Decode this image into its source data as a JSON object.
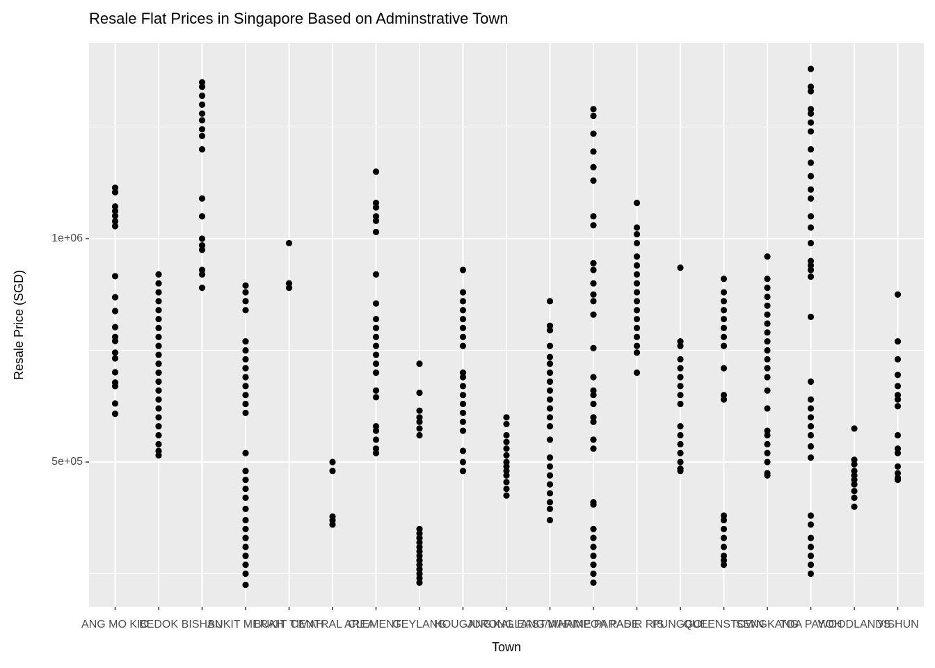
{
  "chart_data": {
    "type": "strip",
    "title": "Resale Flat Prices in Singapore Based on Adminstrative Town",
    "x_label": "Town",
    "y_label": "Resale Price (SGD)",
    "categories": [
      "ANG MO KIO",
      "BEDOK",
      "BISHAN",
      "BUKIT MERAH",
      "BUKIT TIMAH",
      "CENTRAL AREA",
      "CLEMENTI",
      "GEYLANG",
      "HOUGANG",
      "JURONG EAST",
      "KALLANG/WHAMPOA",
      "MARINE PARADE",
      "PASIR RIS",
      "PUNGGOL",
      "QUEENSTOWN",
      "SENGKANG",
      "TOA PAYOH",
      "WOODLANDS",
      "YISHUN"
    ],
    "values": [
      [
        1114000,
        1104000,
        1072000,
        1062000,
        1051000,
        1039000,
        1028000,
        916000,
        869000,
        838000,
        802000,
        780000,
        771000,
        745000,
        732000,
        701000,
        678000,
        670000,
        631000,
        608000
      ],
      [
        920000,
        900000,
        880000,
        860000,
        840000,
        820000,
        800000,
        780000,
        760000,
        740000,
        720000,
        700000,
        680000,
        660000,
        640000,
        620000,
        600000,
        580000,
        560000,
        540000,
        525000,
        515000
      ],
      [
        1350000,
        1340000,
        1320000,
        1300000,
        1280000,
        1265000,
        1245000,
        1230000,
        1200000,
        1090000,
        1050000,
        1000000,
        985000,
        975000,
        930000,
        920000,
        890000
      ],
      [
        895000,
        880000,
        860000,
        840000,
        770000,
        750000,
        730000,
        710000,
        690000,
        670000,
        650000,
        630000,
        610000,
        520000,
        480000,
        460000,
        440000,
        420000,
        395000,
        370000,
        350000,
        330000,
        310000,
        290000,
        270000,
        250000,
        225000
      ],
      [
        990000,
        900000,
        890000
      ],
      [
        500000,
        480000,
        378000,
        370000,
        360000
      ],
      [
        1150000,
        1080000,
        1070000,
        1050000,
        1040000,
        1015000,
        920000,
        855000,
        820000,
        800000,
        780000,
        760000,
        740000,
        720000,
        700000,
        660000,
        645000,
        580000,
        570000,
        550000,
        530000,
        520000
      ],
      [
        720000,
        655000,
        615000,
        600000,
        590000,
        575000,
        560000,
        350000,
        340000,
        330000,
        320000,
        310000,
        300000,
        290000,
        280000,
        270000,
        260000,
        250000,
        240000,
        230000
      ],
      [
        930000,
        880000,
        860000,
        840000,
        820000,
        800000,
        780000,
        760000,
        700000,
        690000,
        670000,
        650000,
        630000,
        610000,
        590000,
        570000,
        525000,
        500000,
        480000
      ],
      [
        600000,
        585000,
        560000,
        545000,
        530000,
        515000,
        500000,
        490000,
        480000,
        470000,
        455000,
        440000,
        425000
      ],
      [
        860000,
        805000,
        795000,
        760000,
        735000,
        720000,
        700000,
        680000,
        660000,
        640000,
        620000,
        600000,
        580000,
        550000,
        510000,
        490000,
        470000,
        450000,
        430000,
        410000,
        395000,
        370000
      ],
      [
        1290000,
        1275000,
        1235000,
        1195000,
        1160000,
        1130000,
        1050000,
        1030000,
        945000,
        930000,
        900000,
        875000,
        860000,
        830000,
        755000,
        690000,
        660000,
        650000,
        630000,
        600000,
        590000,
        550000,
        530000,
        410000,
        405000,
        350000,
        330000,
        310000,
        290000,
        270000,
        250000,
        230000
      ],
      [
        1080000,
        1025000,
        1010000,
        990000,
        960000,
        940000,
        920000,
        900000,
        880000,
        860000,
        840000,
        820000,
        800000,
        780000,
        760000,
        745000,
        700000
      ],
      [
        935000,
        770000,
        760000,
        730000,
        710000,
        690000,
        670000,
        650000,
        630000,
        580000,
        560000,
        540000,
        520000,
        500000,
        485000,
        480000
      ],
      [
        910000,
        880000,
        860000,
        840000,
        820000,
        800000,
        780000,
        760000,
        710000,
        650000,
        640000,
        380000,
        370000,
        350000,
        330000,
        310000,
        290000,
        280000,
        270000
      ],
      [
        960000,
        910000,
        890000,
        870000,
        850000,
        830000,
        810000,
        790000,
        770000,
        750000,
        730000,
        710000,
        690000,
        660000,
        620000,
        570000,
        560000,
        540000,
        520000,
        500000,
        475000,
        470000
      ],
      [
        1380000,
        1340000,
        1330000,
        1290000,
        1280000,
        1260000,
        1240000,
        1200000,
        1170000,
        1140000,
        1110000,
        1090000,
        1050000,
        1025000,
        990000,
        950000,
        940000,
        930000,
        915000,
        825000,
        680000,
        640000,
        620000,
        600000,
        580000,
        560000,
        535000,
        510000,
        380000,
        360000,
        330000,
        310000,
        290000,
        270000,
        250000
      ],
      [
        575000,
        505000,
        495000,
        480000,
        470000,
        460000,
        450000,
        435000,
        420000,
        400000
      ],
      [
        875000,
        770000,
        730000,
        695000,
        670000,
        650000,
        640000,
        625000,
        560000,
        530000,
        520000,
        490000,
        475000,
        465000,
        460000
      ]
    ],
    "color": "#000000",
    "ylim": [
      176000,
      1437700
    ],
    "yticks": [
      {
        "value": 500000,
        "label": "5e+05"
      },
      {
        "value": 1000000,
        "label": "1e+06"
      }
    ],
    "y_minor_grid": [
      250000,
      750000,
      1250000
    ],
    "grid": true
  }
}
